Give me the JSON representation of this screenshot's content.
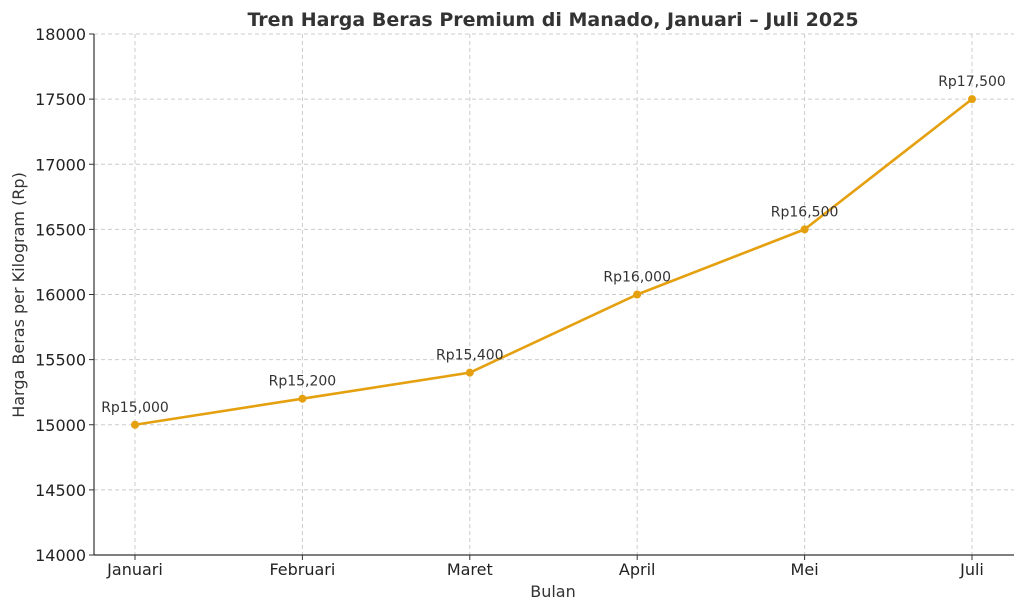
{
  "chart_data": {
    "type": "line",
    "title": "Tren Harga Beras Premium di Manado, Januari – Juli 2025",
    "xlabel": "Bulan",
    "ylabel": "Harga Beras per Kilogram (Rp)",
    "categories": [
      "Januari",
      "Februari",
      "Maret",
      "April",
      "Mei",
      "Juli"
    ],
    "series": [
      {
        "values": [
          15000,
          15200,
          15400,
          16000,
          16500,
          17500
        ],
        "data_labels": [
          "Rp15,000",
          "Rp15,200",
          "Rp15,400",
          "Rp16,000",
          "Rp16,500",
          "Rp17,500"
        ],
        "color": "#E5A010"
      }
    ],
    "ylim": [
      14000,
      18000
    ],
    "yticks": [
      14000,
      14500,
      15000,
      15500,
      16000,
      16500,
      17000,
      17500,
      18000
    ],
    "grid": true,
    "legend": "none"
  }
}
